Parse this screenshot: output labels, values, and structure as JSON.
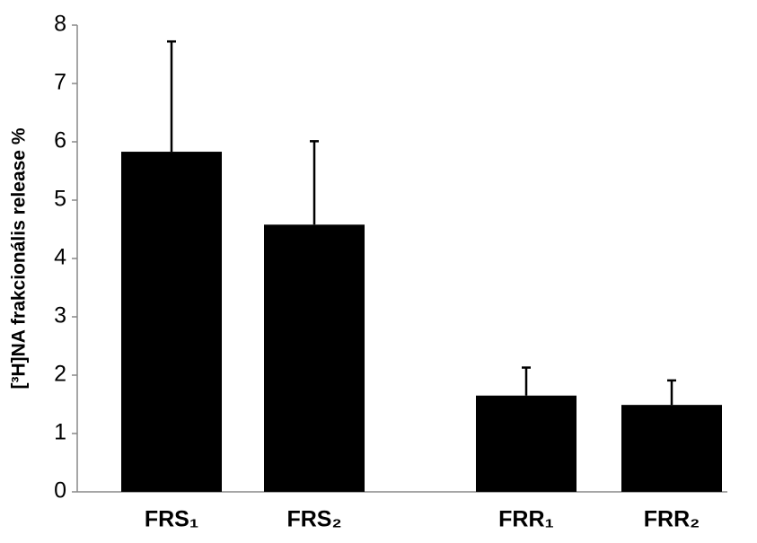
{
  "chart_data": {
    "type": "bar",
    "y_label": "[³H]NA frakcionális release %",
    "categories": [
      "FRS₁",
      "FRS₂",
      null,
      "FRR₁",
      "FRR₂"
    ],
    "values": [
      5.83,
      4.58,
      null,
      1.65,
      1.49
    ],
    "errors": [
      1.89,
      1.43,
      null,
      0.48,
      0.42
    ],
    "color": "#000000",
    "ylim": [
      0,
      8
    ],
    "yticks": [
      0,
      1,
      2,
      3,
      4,
      5,
      6,
      7,
      8
    ],
    "grid": false
  }
}
